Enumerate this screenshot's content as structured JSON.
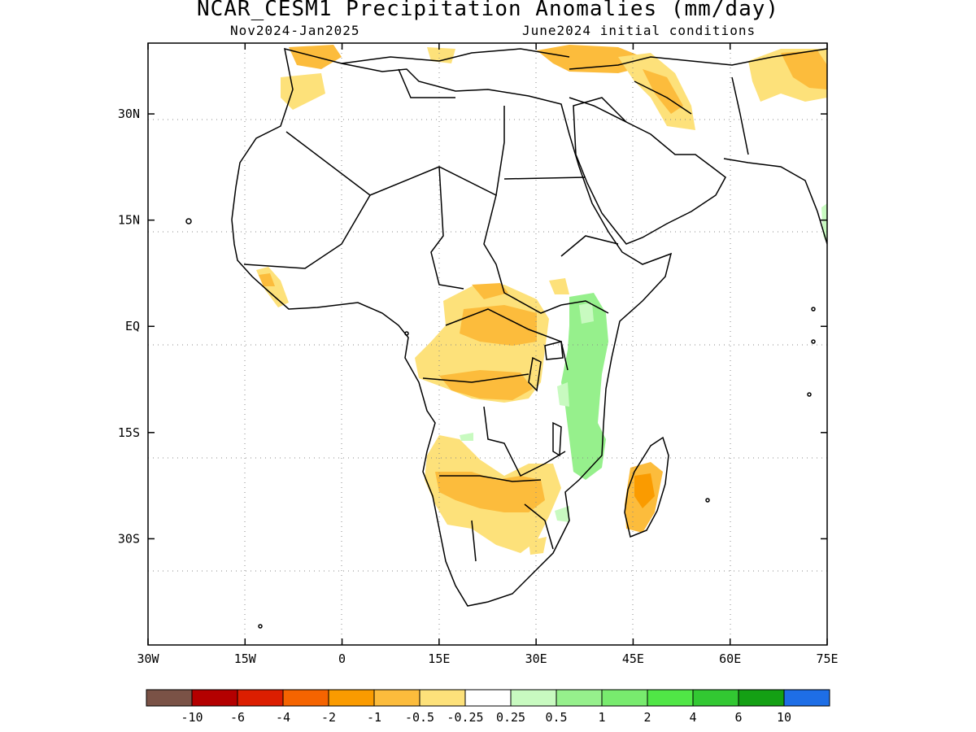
{
  "title": "NCAR_CESM1 Precipitation Anomalies (mm/day)",
  "subtitle_left": "Nov2024-Jan2025",
  "subtitle_right": "June2024 initial conditions",
  "map_extent": {
    "lon": [
      -30,
      75
    ],
    "lat": [
      -45,
      40
    ]
  },
  "lon_ticks": [
    {
      "value": -30,
      "label": "30W"
    },
    {
      "value": -15,
      "label": "15W"
    },
    {
      "value": 0,
      "label": "0"
    },
    {
      "value": 15,
      "label": "15E"
    },
    {
      "value": 30,
      "label": "30E"
    },
    {
      "value": 45,
      "label": "45E"
    },
    {
      "value": 60,
      "label": "60E"
    },
    {
      "value": 75,
      "label": "75E"
    }
  ],
  "lat_ticks": [
    {
      "value": 30,
      "label": "30N"
    },
    {
      "value": 15,
      "label": "15N"
    },
    {
      "value": 0,
      "label": "EQ"
    },
    {
      "value": -15,
      "label": "15S"
    },
    {
      "value": -30,
      "label": "30S"
    }
  ],
  "gridlines": true,
  "colorbar": {
    "colors": [
      "#7a5246",
      "#b40000",
      "#dc1e00",
      "#f56400",
      "#fa9b00",
      "#fcbc3c",
      "#fde17a",
      "#ffffff",
      "#c8fac0",
      "#96f08c",
      "#78eb6e",
      "#50e646",
      "#32c832",
      "#14a014",
      "#1e6ee6"
    ],
    "labels": [
      "-10",
      "-6",
      "-4",
      "-2",
      "-1",
      "-0.5",
      "-0.25",
      "0.25",
      "0.5",
      "1",
      "2",
      "4",
      "6",
      "10"
    ]
  },
  "anomaly_regions": [
    {
      "name": "sahel-west-coast",
      "class": "-0.5"
    },
    {
      "name": "congo-basin",
      "class": "-1"
    },
    {
      "name": "east-africa-coast",
      "class": "1"
    },
    {
      "name": "southern-africa",
      "class": "-1"
    },
    {
      "name": "madagascar",
      "class": "-2"
    },
    {
      "name": "north-africa-med",
      "class": "-0.5"
    },
    {
      "name": "middle-east",
      "class": "-1"
    }
  ]
}
